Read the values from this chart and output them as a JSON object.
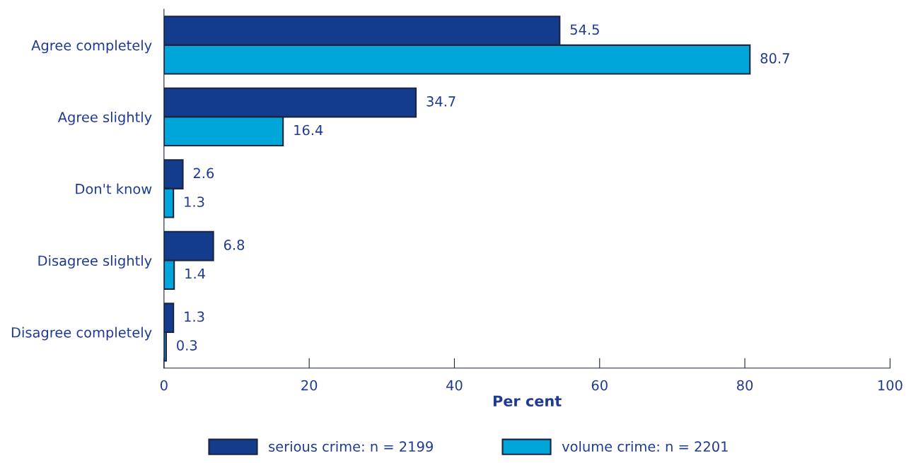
{
  "chart_data": {
    "type": "bar",
    "orientation": "horizontal",
    "xlabel": "Per cent",
    "categories": [
      "Agree completely",
      "Agree slightly",
      "Don't know",
      "Disagree slightly",
      "Disagree completely"
    ],
    "series": [
      {
        "name": "serious crime: n = 2199",
        "color": "#133d8c",
        "values": [
          54.5,
          34.7,
          2.6,
          6.8,
          1.3
        ]
      },
      {
        "name": "volume crime: n = 2201",
        "color": "#00a5da",
        "values": [
          80.7,
          16.4,
          1.3,
          1.4,
          0.3
        ]
      }
    ],
    "xlim": [
      0,
      100
    ],
    "xticks": [
      0,
      20,
      40,
      60,
      80,
      100
    ],
    "data_labels": true,
    "grid": false,
    "legend": "bottom"
  }
}
